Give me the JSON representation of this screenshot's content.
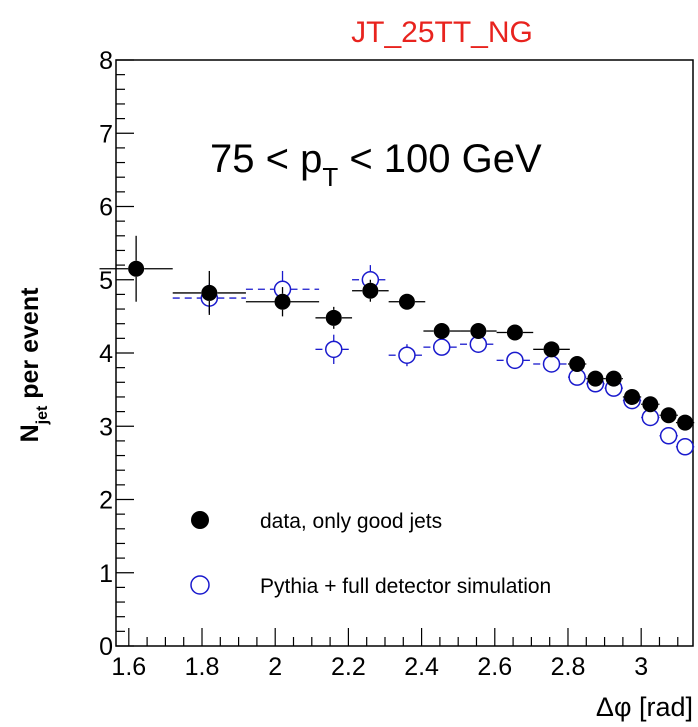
{
  "chart_data": {
    "type": "scatter",
    "title": "JT_25TT_NG",
    "annotation": {
      "main": "75 < p",
      "sub": "T",
      "tail": " < 100 GeV"
    },
    "xlabel": "Δφ [rad]",
    "ylabel": {
      "main": "N",
      "sub": "jet",
      "tail": " per event"
    },
    "xlim": [
      1.565,
      3.1416
    ],
    "ylim": [
      0,
      8
    ],
    "xticks": [
      1.6,
      1.8,
      2.0,
      2.2,
      2.4,
      2.6,
      2.8,
      3.0
    ],
    "xtick_labels": [
      "1.6",
      "1.8",
      "2",
      "2.2",
      "2.4",
      "2.6",
      "2.8",
      "3"
    ],
    "yticks": [
      0,
      1,
      2,
      3,
      4,
      5,
      6,
      7,
      8
    ],
    "ytick_labels": [
      "0",
      "1",
      "2",
      "3",
      "4",
      "5",
      "6",
      "7",
      "8"
    ],
    "grid": false,
    "legend_position": "bottom-left",
    "series": [
      {
        "name": "data, only good jets",
        "color": "#000000",
        "marker": "filled-circle",
        "line": "solid",
        "points": [
          {
            "x": 1.62,
            "y": 5.15,
            "xerr": 0.1,
            "yerr": 0.45
          },
          {
            "x": 1.82,
            "y": 4.82,
            "xerr": 0.1,
            "yerr": 0.3
          },
          {
            "x": 2.02,
            "y": 4.7,
            "xerr": 0.1,
            "yerr": 0.2
          },
          {
            "x": 2.16,
            "y": 4.48,
            "xerr": 0.05,
            "yerr": 0.15
          },
          {
            "x": 2.26,
            "y": 4.85,
            "xerr": 0.05,
            "yerr": 0.15
          },
          {
            "x": 2.36,
            "y": 4.7,
            "xerr": 0.05,
            "yerr": 0.1
          },
          {
            "x": 2.455,
            "y": 4.3,
            "xerr": 0.05,
            "yerr": 0.06
          },
          {
            "x": 2.555,
            "y": 4.3,
            "xerr": 0.05,
            "yerr": 0.06
          },
          {
            "x": 2.655,
            "y": 4.28,
            "xerr": 0.05,
            "yerr": 0.06
          },
          {
            "x": 2.755,
            "y": 4.05,
            "xerr": 0.05,
            "yerr": 0.06
          },
          {
            "x": 2.825,
            "y": 3.85,
            "xerr": 0.025,
            "yerr": 0.06
          },
          {
            "x": 2.875,
            "y": 3.65,
            "xerr": 0.025,
            "yerr": 0.06
          },
          {
            "x": 2.925,
            "y": 3.65,
            "xerr": 0.025,
            "yerr": 0.06
          },
          {
            "x": 2.975,
            "y": 3.4,
            "xerr": 0.025,
            "yerr": 0.06
          },
          {
            "x": 3.025,
            "y": 3.3,
            "xerr": 0.025,
            "yerr": 0.06
          },
          {
            "x": 3.075,
            "y": 3.15,
            "xerr": 0.025,
            "yerr": 0.06
          },
          {
            "x": 3.12,
            "y": 3.05,
            "xerr": 0.025,
            "yerr": 0.06
          }
        ]
      },
      {
        "name": "Pythia + full detector simulation",
        "color": "#1a1acd",
        "marker": "open-circle",
        "line": "dashed",
        "points": [
          {
            "x": 1.82,
            "y": 4.75,
            "xerr": 0.1,
            "yerr": 0.2
          },
          {
            "x": 2.02,
            "y": 4.87,
            "xerr": 0.1,
            "yerr": 0.25
          },
          {
            "x": 2.16,
            "y": 4.05,
            "xerr": 0.05,
            "yerr": 0.2
          },
          {
            "x": 2.26,
            "y": 5.0,
            "xerr": 0.05,
            "yerr": 0.2
          },
          {
            "x": 2.36,
            "y": 3.97,
            "xerr": 0.05,
            "yerr": 0.15
          },
          {
            "x": 2.455,
            "y": 4.08,
            "xerr": 0.05,
            "yerr": 0.1
          },
          {
            "x": 2.555,
            "y": 4.12,
            "xerr": 0.05,
            "yerr": 0.1
          },
          {
            "x": 2.655,
            "y": 3.9,
            "xerr": 0.05,
            "yerr": 0.08
          },
          {
            "x": 2.755,
            "y": 3.85,
            "xerr": 0.05,
            "yerr": 0.08
          },
          {
            "x": 2.825,
            "y": 3.67,
            "xerr": 0.025,
            "yerr": 0.08
          },
          {
            "x": 2.875,
            "y": 3.58,
            "xerr": 0.025,
            "yerr": 0.08
          },
          {
            "x": 2.925,
            "y": 3.52,
            "xerr": 0.025,
            "yerr": 0.08
          },
          {
            "x": 2.975,
            "y": 3.35,
            "xerr": 0.025,
            "yerr": 0.08
          },
          {
            "x": 3.025,
            "y": 3.12,
            "xerr": 0.025,
            "yerr": 0.08
          },
          {
            "x": 3.075,
            "y": 2.87,
            "xerr": 0.025,
            "yerr": 0.08
          },
          {
            "x": 3.12,
            "y": 2.72,
            "xerr": 0.025,
            "yerr": 0.08
          }
        ]
      }
    ]
  }
}
